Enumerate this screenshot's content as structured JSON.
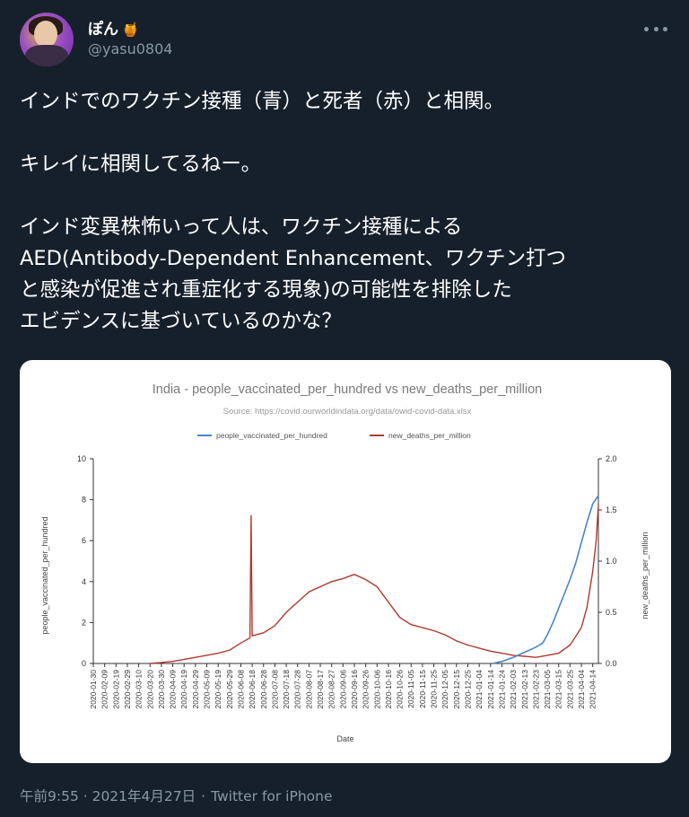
{
  "tweet": {
    "author": {
      "display_name": "ぽん",
      "badge_emoji": "🍯",
      "handle": "@yasu0804"
    },
    "text_lines": [
      "インドでのワクチン接種（青）と死者（赤）と相関。",
      "",
      "キレイに相関してるねー。",
      "",
      "インド変異株怖いって人は、ワクチン接種による",
      "AED(Antibody-Dependent Enhancement、ワクチン打つ",
      "と感染が促進され重症化する現象)の可能性を排除した",
      "エビデンスに基づいているのかな？"
    ],
    "timestamp": "午前9:55 · 2021年4月27日",
    "separator": "·",
    "source": "Twitter for iPhone"
  },
  "icons": {
    "more": "more-horizontal-icon",
    "avatar": "user-avatar"
  },
  "colors": {
    "background": "#15202b",
    "muted": "#8899a6",
    "vaccinated": "#4a86c8",
    "deaths": "#b03a2e"
  },
  "chart_data": {
    "type": "line",
    "title": "India - people_vaccinated_per_hundred vs new_deaths_per_million",
    "subtitle": "Source: https://covid.ourworldindata.org/data/owid-covid-data.xlsx",
    "xlabel": "Date",
    "ylabel_left": "people_vaccinated_per_hundred",
    "ylabel_right": "new_deaths_per_million",
    "ylim_left": [
      0,
      10
    ],
    "ylim_right": [
      0,
      2.0
    ],
    "yticks_left": [
      "0",
      "2",
      "4",
      "6",
      "8",
      "10"
    ],
    "yticks_right": [
      "0.0",
      "0.5",
      "1.0",
      "1.5",
      "2.0"
    ],
    "legend_position": "top-center",
    "x_tick_labels": [
      "2020-01-30",
      "2020-02-09",
      "2020-02-19",
      "2020-02-29",
      "2020-03-10",
      "2020-03-20",
      "2020-03-30",
      "2020-04-09",
      "2020-04-19",
      "2020-04-29",
      "2020-05-09",
      "2020-05-19",
      "2020-05-29",
      "2020-06-08",
      "2020-06-18",
      "2020-06-28",
      "2020-07-08",
      "2020-07-18",
      "2020-07-28",
      "2020-08-07",
      "2020-08-17",
      "2020-08-27",
      "2020-09-06",
      "2020-09-16",
      "2020-09-26",
      "2020-10-06",
      "2020-10-16",
      "2020-10-26",
      "2020-11-05",
      "2020-11-15",
      "2020-11-25",
      "2020-12-05",
      "2020-12-15",
      "2020-12-25",
      "2021-01-04",
      "2021-01-14",
      "2021-01-24",
      "2021-02-03",
      "2021-02-13",
      "2021-02-23",
      "2021-03-05",
      "2021-03-15",
      "2021-03-25",
      "2021-04-04",
      "2021-04-14"
    ],
    "series": [
      {
        "name": "people_vaccinated_per_hundred",
        "axis": "left",
        "color": "#4a86c8",
        "points": [
          [
            "2021-01-16",
            0.0
          ],
          [
            "2021-01-24",
            0.1
          ],
          [
            "2021-02-03",
            0.3
          ],
          [
            "2021-02-13",
            0.55
          ],
          [
            "2021-02-23",
            0.8
          ],
          [
            "2021-03-01",
            1.0
          ],
          [
            "2021-03-05",
            1.4
          ],
          [
            "2021-03-10",
            2.0
          ],
          [
            "2021-03-15",
            2.7
          ],
          [
            "2021-03-20",
            3.4
          ],
          [
            "2021-03-25",
            4.1
          ],
          [
            "2021-03-30",
            4.9
          ],
          [
            "2021-04-04",
            5.9
          ],
          [
            "2021-04-09",
            6.9
          ],
          [
            "2021-04-14",
            7.8
          ],
          [
            "2021-04-19",
            8.2
          ]
        ]
      },
      {
        "name": "new_deaths_per_million",
        "axis": "right",
        "color": "#b03a2e",
        "points": [
          [
            "2020-03-20",
            0.0
          ],
          [
            "2020-03-30",
            0.01
          ],
          [
            "2020-04-09",
            0.02
          ],
          [
            "2020-04-19",
            0.04
          ],
          [
            "2020-04-29",
            0.06
          ],
          [
            "2020-05-09",
            0.08
          ],
          [
            "2020-05-19",
            0.1
          ],
          [
            "2020-05-29",
            0.13
          ],
          [
            "2020-06-08",
            0.2
          ],
          [
            "2020-06-16",
            0.25
          ],
          [
            "2020-06-17",
            1.45
          ],
          [
            "2020-06-18",
            0.27
          ],
          [
            "2020-06-28",
            0.3
          ],
          [
            "2020-07-08",
            0.37
          ],
          [
            "2020-07-18",
            0.5
          ],
          [
            "2020-07-28",
            0.6
          ],
          [
            "2020-08-07",
            0.7
          ],
          [
            "2020-08-17",
            0.75
          ],
          [
            "2020-08-27",
            0.8
          ],
          [
            "2020-09-06",
            0.83
          ],
          [
            "2020-09-16",
            0.87
          ],
          [
            "2020-09-26",
            0.82
          ],
          [
            "2020-10-06",
            0.75
          ],
          [
            "2020-10-16",
            0.6
          ],
          [
            "2020-10-26",
            0.45
          ],
          [
            "2020-11-05",
            0.38
          ],
          [
            "2020-11-15",
            0.35
          ],
          [
            "2020-11-25",
            0.32
          ],
          [
            "2020-12-05",
            0.28
          ],
          [
            "2020-12-15",
            0.22
          ],
          [
            "2020-12-25",
            0.18
          ],
          [
            "2021-01-04",
            0.15
          ],
          [
            "2021-01-14",
            0.12
          ],
          [
            "2021-01-24",
            0.1
          ],
          [
            "2021-02-03",
            0.08
          ],
          [
            "2021-02-13",
            0.07
          ],
          [
            "2021-02-23",
            0.06
          ],
          [
            "2021-03-05",
            0.08
          ],
          [
            "2021-03-15",
            0.1
          ],
          [
            "2021-03-25",
            0.18
          ],
          [
            "2021-04-04",
            0.35
          ],
          [
            "2021-04-09",
            0.55
          ],
          [
            "2021-04-14",
            0.9
          ],
          [
            "2021-04-17",
            1.2
          ],
          [
            "2021-04-19",
            1.55
          ]
        ]
      }
    ]
  }
}
